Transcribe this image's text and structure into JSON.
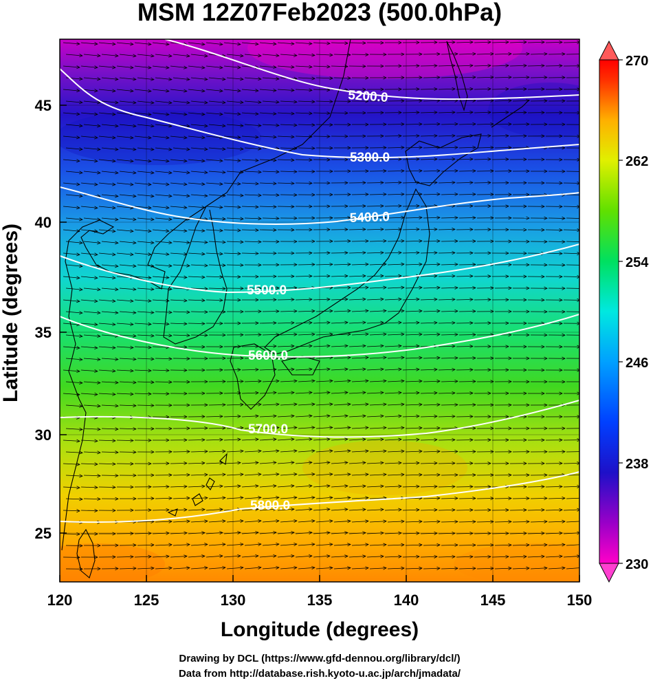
{
  "title": "MSM 12Z07Feb2023 (500.0hPa)",
  "xlabel": "Longitude (degrees)",
  "ylabel": "Latitude  (degrees)",
  "credit_line1": "Drawing by DCL (https://www.gfd-dennou.org/library/dcl/)",
  "credit_line2": "Data from http://database.rish.kyoto-u.ac.jp/arch/jmadata/",
  "axes": {
    "xlim": [
      120,
      150
    ],
    "ylim": [
      22.4,
      47.6
    ],
    "xticks": [
      "120",
      "125",
      "130",
      "135",
      "140",
      "145",
      "150"
    ],
    "yticks": [
      "25",
      "30",
      "35",
      "40",
      "45"
    ]
  },
  "colorbar": {
    "range": [
      230,
      270
    ],
    "tick_labels": [
      "230",
      "238",
      "246",
      "254",
      "262",
      "270"
    ]
  },
  "contours": [
    {
      "label": "5200.0",
      "value": 5200
    },
    {
      "label": "5300.0",
      "value": 5300
    },
    {
      "label": "5400.0",
      "value": 5400
    },
    {
      "label": "5500.0",
      "value": 5500
    },
    {
      "label": "5600.0",
      "value": 5600
    },
    {
      "label": "5700.0",
      "value": 5700
    },
    {
      "label": "5800.0",
      "value": 5800
    }
  ],
  "colors": {
    "cold": "#e800c8",
    "warm": "#ff8800",
    "contour": "#ffffff"
  }
}
